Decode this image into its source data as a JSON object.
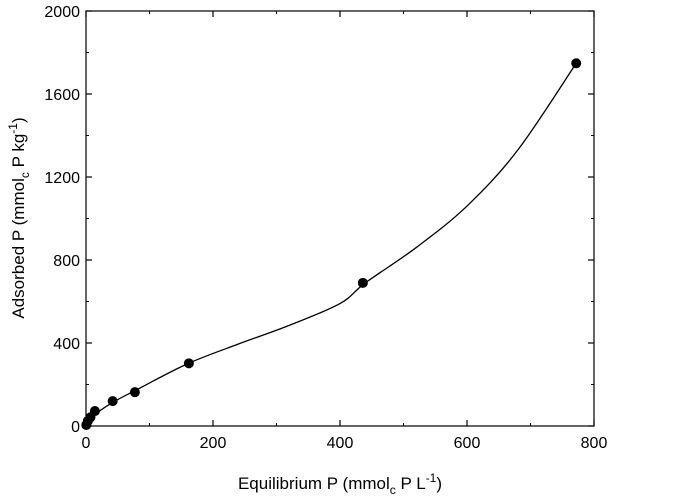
{
  "chart_data": {
    "type": "scatter",
    "title": "",
    "xlabel": {
      "main": "Equilibrium P (mmol",
      "sub": "c",
      "mid": " P L",
      "sup": "-1",
      "end": ")"
    },
    "ylabel": {
      "main": "Adsorbed P (mmol",
      "sub": "c",
      "mid": " P kg",
      "sup": "-1",
      "end": ")"
    },
    "xlim": [
      0,
      800
    ],
    "ylim": [
      0,
      2000
    ],
    "x_ticks": [
      0,
      200,
      400,
      600,
      800
    ],
    "x_tick_labels": [
      "0",
      "200",
      "400",
      "600",
      "800"
    ],
    "y_ticks": [
      0,
      400,
      800,
      1200,
      1600,
      2000
    ],
    "y_tick_labels": [
      "0",
      "400",
      "800",
      "1200",
      "1600",
      "2000"
    ],
    "grid": false,
    "series": [
      {
        "points": [
          {
            "x": 0.5,
            "y": 5
          },
          {
            "x": 3,
            "y": 25
          },
          {
            "x": 7,
            "y": 42
          },
          {
            "x": 14,
            "y": 72
          },
          {
            "x": 42,
            "y": 120
          },
          {
            "x": 77,
            "y": 163
          },
          {
            "x": 162,
            "y": 302
          },
          {
            "x": 436,
            "y": 690
          },
          {
            "x": 772,
            "y": 1748
          }
        ],
        "fit_curve": [
          [
            0,
            0
          ],
          [
            10,
            45
          ],
          [
            40,
            110
          ],
          [
            80,
            175
          ],
          [
            160,
            300
          ],
          [
            240,
            395
          ],
          [
            320,
            485
          ],
          [
            400,
            590
          ],
          [
            440,
            690
          ],
          [
            520,
            860
          ],
          [
            600,
            1060
          ],
          [
            680,
            1330
          ],
          [
            772,
            1748
          ]
        ]
      }
    ]
  }
}
